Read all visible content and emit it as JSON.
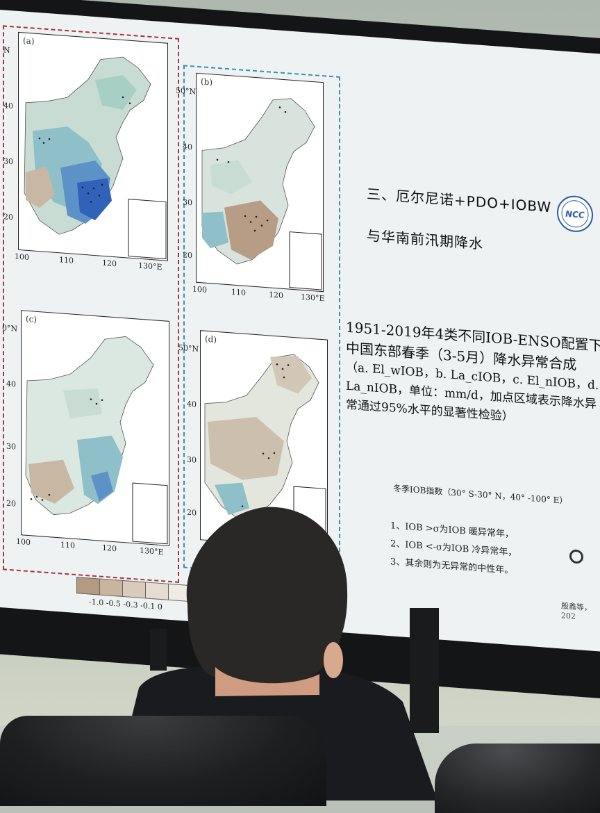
{
  "slide": {
    "title_line1": "三、厄尔尼诺+PDO+IOBW",
    "title_line2": "与华南前汛期降水",
    "logo_text": "NCC",
    "caption_main": "1951-2019年4类不同IOB-ENSO配置下中国东部春季（3-5月）降水异常合成",
    "caption_detail": "（a. El_wIOB，b. La_cIOB，c. El_nIOB，d. La_nIOB，单位：mm/d，加点区域表示降水异常通过95%水平的显著性检验）",
    "rule_title": "冬季IOB指数（30° S-30° N，40° -100° E）",
    "rules": [
      "1、IOB >σ为IOB 暖异常年，",
      "2、IOB <-σ为IOB 冷异常年，",
      "3、其余则为无异常的中性年。"
    ],
    "citation": "殷鑫等，202",
    "panels": [
      {
        "label": "(a)",
        "ylabels": [
          "N",
          "40",
          "30",
          "20"
        ],
        "xlabels": [
          "100",
          "110",
          "120",
          "130°E"
        ]
      },
      {
        "label": "(b)",
        "ylabels": [
          "50°N",
          "40",
          "30",
          "20"
        ],
        "xlabels": [
          "100",
          "110",
          "120",
          "130°E"
        ]
      },
      {
        "label": "(c)",
        "ylabels": [
          "0°N",
          "40",
          "30",
          "20"
        ],
        "xlabels": [
          "100",
          "110",
          "120",
          "130°E"
        ]
      },
      {
        "label": "(d)",
        "ylabels": [
          "50°N",
          "40",
          "30",
          "20"
        ],
        "xlabels": []
      }
    ],
    "legend_labels": "-1.0  -0.5  -0.3  -0.1   0",
    "legend_colors": [
      "#b49a82",
      "#c9b49e",
      "#d9cbbb",
      "#e6ddd2",
      "#eeeae4"
    ],
    "colors": {
      "wet": "#2f62b8",
      "mid_wet": "#7fb3c7",
      "light": "#c9dcd3",
      "dry": "#b79d86"
    }
  }
}
